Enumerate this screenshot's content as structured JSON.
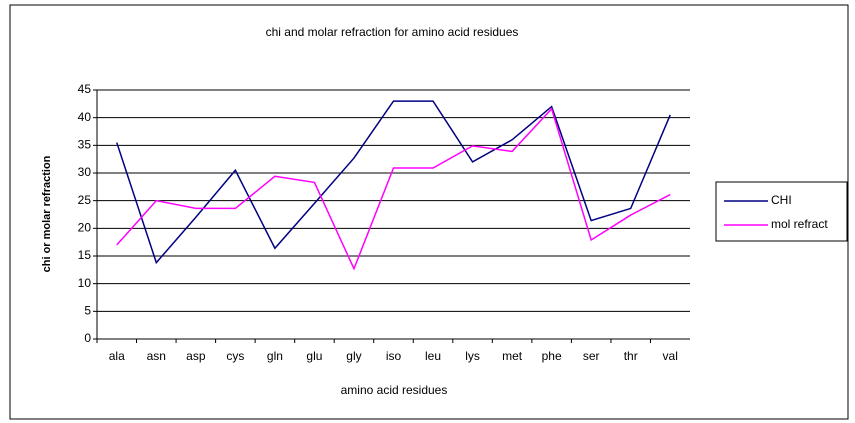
{
  "chart_data": {
    "type": "line",
    "title": "chi and molar refraction for amino acid residues",
    "x_label": "amino acid residues",
    "y_label": "chi or molar refraction",
    "categories": [
      "ala",
      "asn",
      "asp",
      "cys",
      "gln",
      "glu",
      "gly",
      "iso",
      "leu",
      "lys",
      "met",
      "phe",
      "ser",
      "thr",
      "val"
    ],
    "series": [
      {
        "name": "CHI",
        "color": "#000080",
        "values": [
          35.5,
          13.8,
          22,
          30.5,
          16.4,
          24.5,
          32.7,
          43,
          43,
          32,
          36,
          42,
          21.4,
          23.6,
          40.5
        ]
      },
      {
        "name": "mol refract",
        "color": "#ff00ff",
        "values": [
          17,
          25,
          23.6,
          23.6,
          29.4,
          28.3,
          12.7,
          30.9,
          30.9,
          34.9,
          33.9,
          41.6,
          17.9,
          22.4,
          26.1
        ]
      }
    ],
    "ylim": [
      0,
      45
    ],
    "yticks": [
      0,
      5,
      10,
      15,
      20,
      25,
      30,
      35,
      40,
      45
    ],
    "grid": true,
    "legend": "right"
  }
}
